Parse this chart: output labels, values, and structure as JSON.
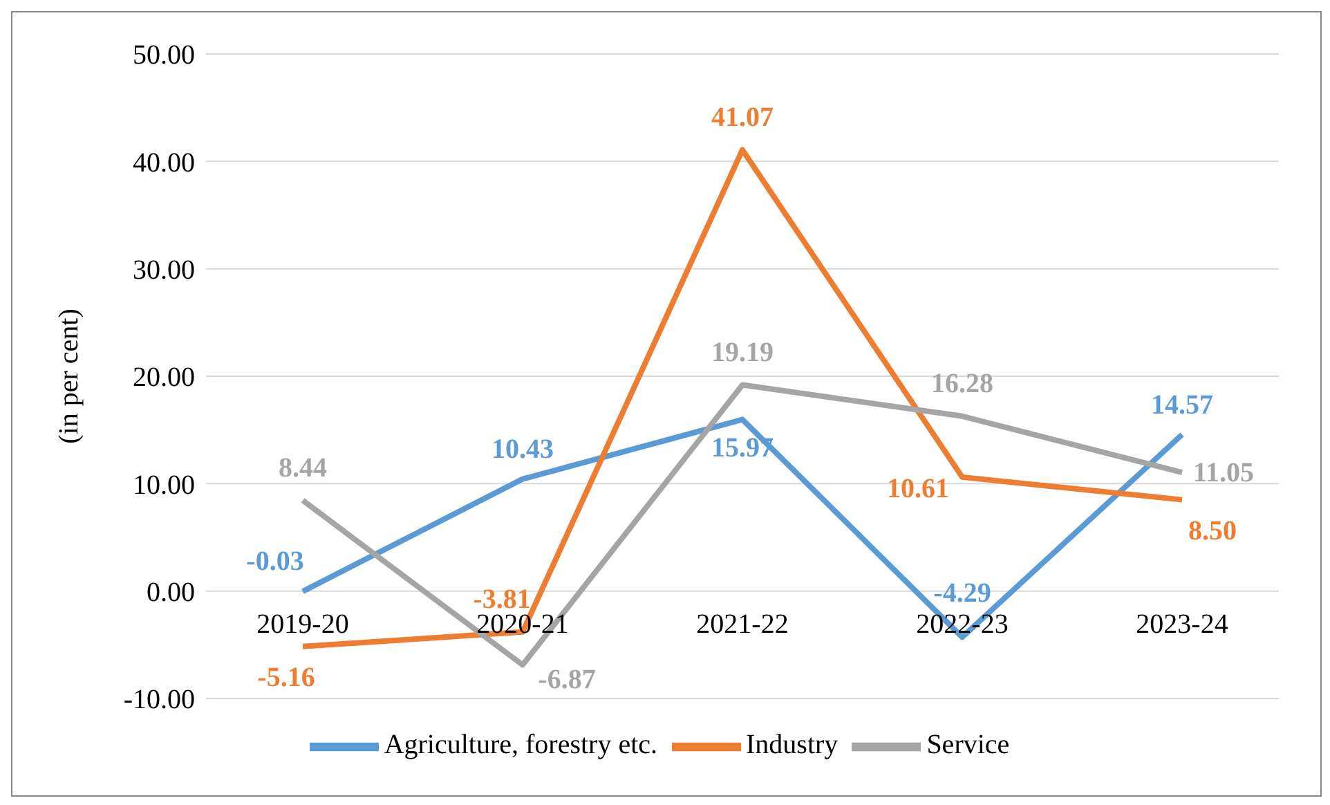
{
  "chart_data": {
    "type": "line",
    "ylabel": "(in per cent)",
    "categories": [
      "2019-20",
      "2020-21",
      "2021-22",
      "2022-23",
      "2023-24"
    ],
    "series": [
      {
        "name": "Agriculture, forestry etc.",
        "color": "#5b9bd5",
        "values": [
          -0.03,
          10.43,
          15.97,
          -4.29,
          14.57
        ],
        "value_labels": [
          "-0.03",
          "10.43",
          "15.97",
          "-4.29",
          "14.57"
        ]
      },
      {
        "name": "Industry",
        "color": "#ed7d31",
        "values": [
          -5.16,
          -3.81,
          41.07,
          10.61,
          8.5
        ],
        "value_labels": [
          "-5.16",
          "-3.81",
          "41.07",
          "10.61",
          "8.50"
        ]
      },
      {
        "name": "Service",
        "color": "#a5a5a5",
        "values": [
          8.44,
          -6.87,
          19.19,
          16.28,
          11.05
        ],
        "value_labels": [
          "8.44",
          "-6.87",
          "19.19",
          "16.28",
          "11.05"
        ]
      }
    ],
    "ylim": [
      -10,
      50
    ],
    "yticks": [
      {
        "value": -10,
        "label": "-10.00"
      },
      {
        "value": 0,
        "label": "0.00"
      },
      {
        "value": 10,
        "label": "10.00"
      },
      {
        "value": 20,
        "label": "20.00"
      },
      {
        "value": 30,
        "label": "30.00"
      },
      {
        "value": 40,
        "label": "40.00"
      },
      {
        "value": 50,
        "label": "50.00"
      }
    ],
    "grid": "y",
    "legend": "bottom",
    "marker": "none",
    "line_style": "solid"
  }
}
